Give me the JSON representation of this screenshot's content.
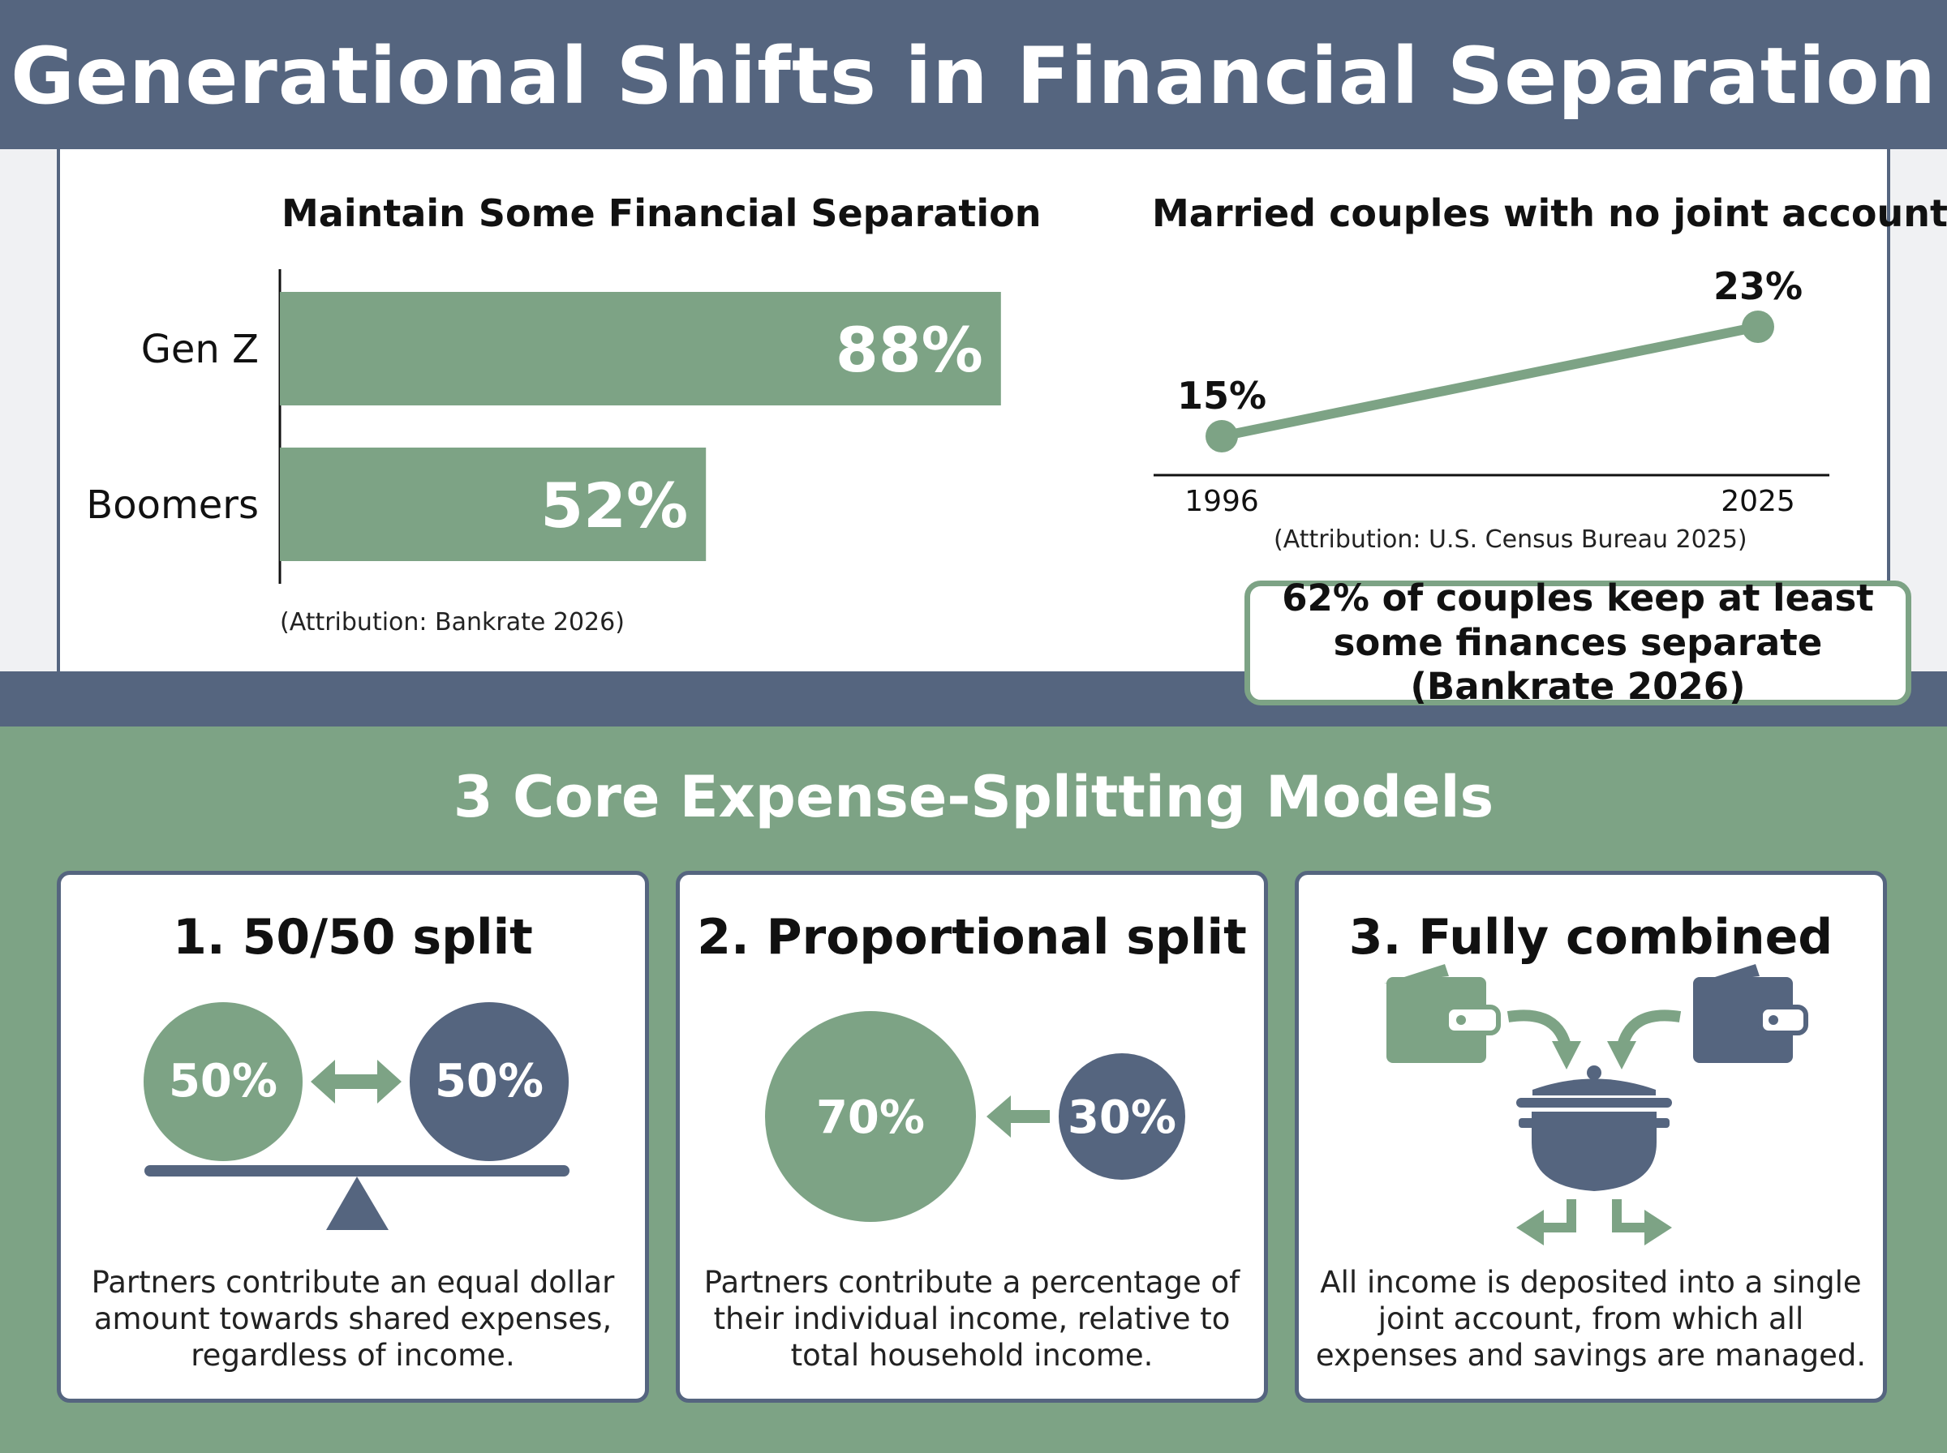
{
  "header": {
    "title": "Generational Shifts in Financial Separation"
  },
  "chart_data": [
    {
      "type": "bar",
      "orientation": "horizontal",
      "title": "Maintain Some Financial Separation",
      "categories": [
        "Gen Z",
        "Boomers"
      ],
      "values": [
        88,
        52
      ],
      "value_labels": [
        "88%",
        "52%"
      ],
      "xlim": [
        0,
        100
      ],
      "color": "#7da385",
      "attribution": "(Attribution: Bankrate 2026)"
    },
    {
      "type": "line",
      "title": "Married couples with no joint accounts",
      "x": [
        "1996",
        "2025"
      ],
      "values": [
        15,
        23
      ],
      "value_labels": [
        "15%",
        "23%"
      ],
      "color": "#7da385",
      "attribution": "(Attribution: U.S. Census Bureau 2025)"
    }
  ],
  "callout": {
    "text": "62% of couples keep at least some finances separate (Bankrate 2026)"
  },
  "models": {
    "title": "3 Core Expense-Splitting Models",
    "cards": [
      {
        "title": "1. 50/50 split",
        "left_label": "50%",
        "right_label": "50%",
        "description": "Partners contribute an equal dollar amount towards shared expenses, regardless of income."
      },
      {
        "title": "2. Proportional split",
        "left_label": "70%",
        "right_label": "30%",
        "description": "Partners contribute a percentage of their individual income, relative to total household income."
      },
      {
        "title": "3. Fully combined",
        "description": "All income is deposited into a single joint account, from which all expenses and savings are managed."
      }
    ]
  },
  "colors": {
    "navy": "#55657f",
    "green": "#7da385"
  },
  "icons": [
    "balance-scale-icon",
    "double-arrow-icon",
    "left-arrow-icon",
    "wallet-icon",
    "pot-icon",
    "split-arrows-icon"
  ]
}
